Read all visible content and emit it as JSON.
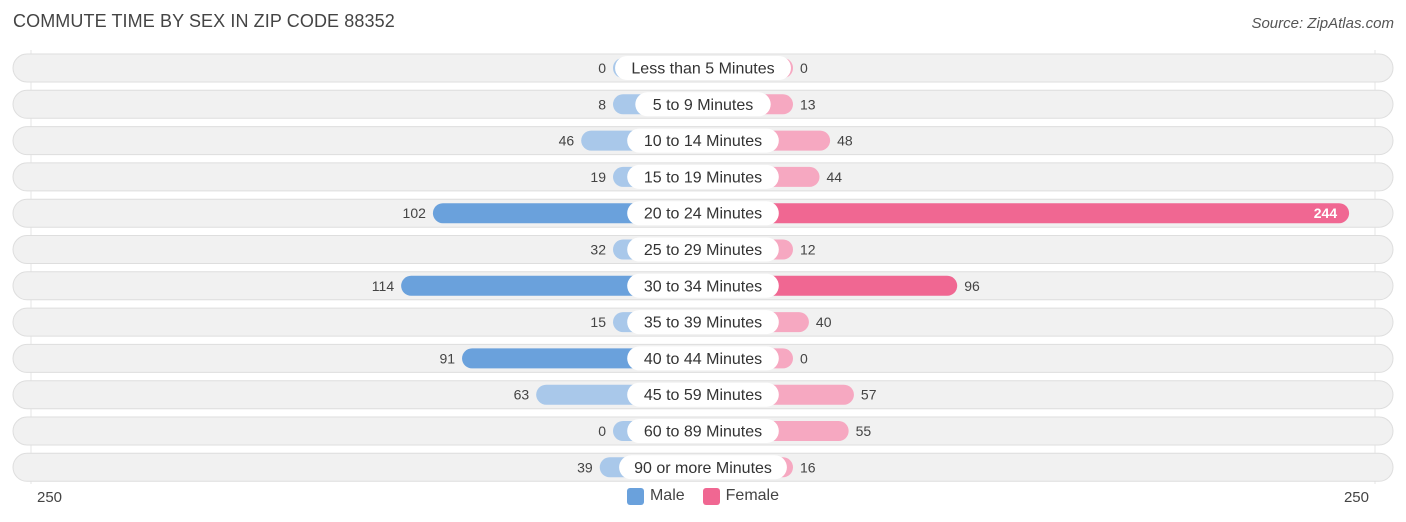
{
  "header": {
    "title": "COMMUTE TIME BY SEX IN ZIP CODE 88352",
    "source": "Source: ZipAtlas.com"
  },
  "colors": {
    "male_light": "#a9c8ea",
    "male_dark": "#6aa1dc",
    "female_light": "#f6a8c1",
    "female_dark": "#f06792",
    "row_bg": "#f1f1f1",
    "row_border": "#dedede"
  },
  "chart_data": {
    "type": "bar",
    "orientation": "horizontal-diverging",
    "categories": [
      "Less than 5 Minutes",
      "5 to 9 Minutes",
      "10 to 14 Minutes",
      "15 to 19 Minutes",
      "20 to 24 Minutes",
      "25 to 29 Minutes",
      "30 to 34 Minutes",
      "35 to 39 Minutes",
      "40 to 44 Minutes",
      "45 to 59 Minutes",
      "60 to 89 Minutes",
      "90 or more Minutes"
    ],
    "series": [
      {
        "name": "Male",
        "values": [
          0,
          8,
          46,
          19,
          102,
          32,
          114,
          15,
          91,
          63,
          0,
          39
        ]
      },
      {
        "name": "Female",
        "values": [
          0,
          13,
          48,
          44,
          244,
          12,
          96,
          40,
          0,
          57,
          55,
          16
        ]
      }
    ],
    "xlim": [
      -250,
      250
    ],
    "axis_labels": {
      "left": "250",
      "right": "250"
    },
    "legend": {
      "placement": "bottom-center",
      "entries": [
        "Male",
        "Female"
      ]
    }
  }
}
